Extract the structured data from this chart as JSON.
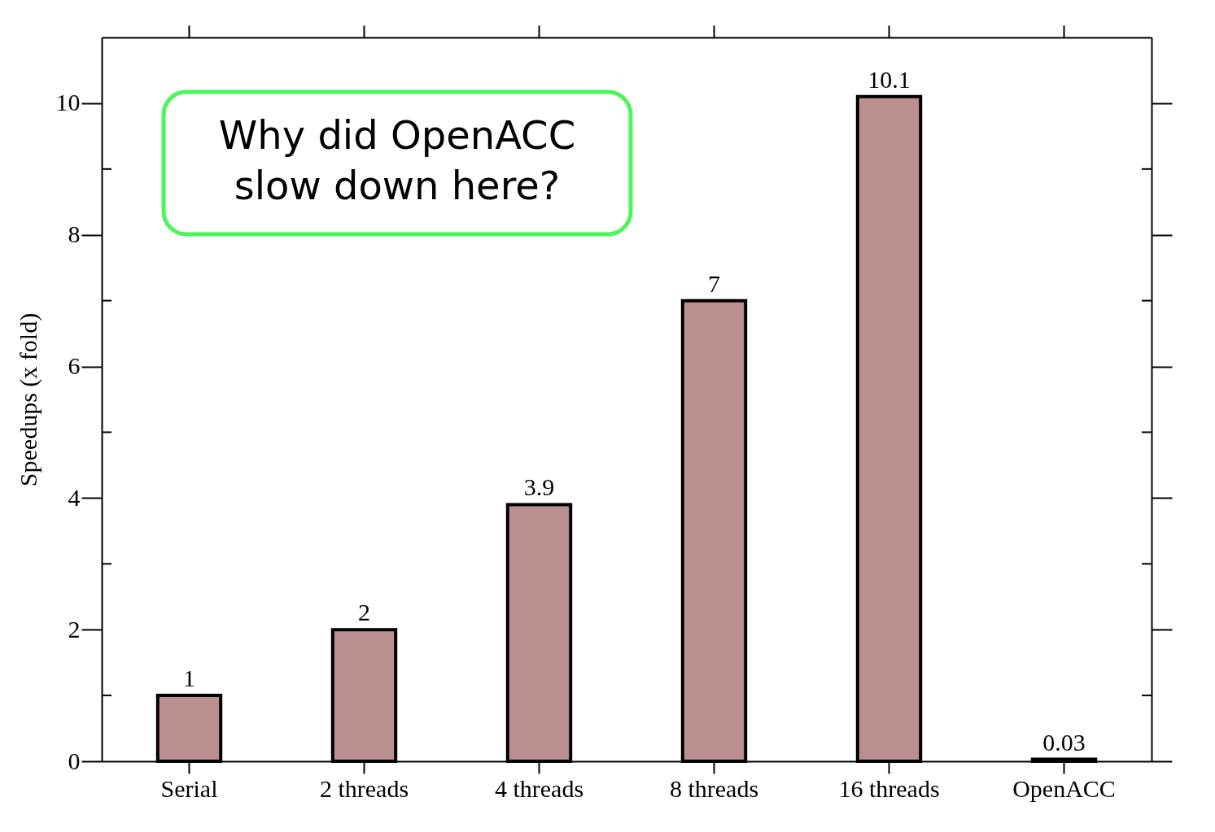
{
  "chart_data": {
    "type": "bar",
    "ylabel": "Speedups (x fold)",
    "categories": [
      "Serial",
      "2 threads",
      "4 threads",
      "8 threads",
      "16 threads",
      "OpenACC"
    ],
    "values": [
      1,
      2,
      3.9,
      7,
      10.1,
      0.03
    ],
    "colors": [
      "#bc8f8f",
      "#bc8f8f",
      "#bc8f8f",
      "#bc8f8f",
      "#bc8f8f",
      "#ff0000"
    ],
    "ylim": [
      0,
      11
    ],
    "yticks": [
      0,
      2,
      4,
      6,
      8,
      10
    ],
    "data_labels": true,
    "grid": false,
    "annotations": [
      "Why did OpenACC\nslow down here?"
    ]
  }
}
